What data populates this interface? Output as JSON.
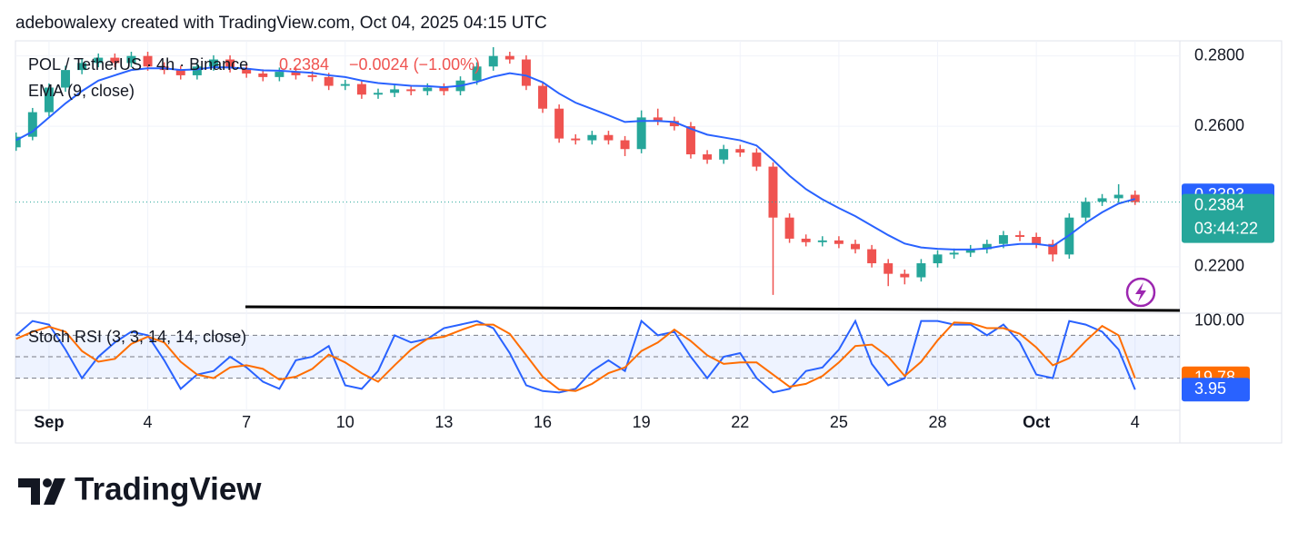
{
  "header": {
    "attribution": "adebowalexy created with TradingView.com, Oct 04, 2025 04:15 UTC",
    "logo": "TradingView"
  },
  "chart_data": [
    {
      "type": "candlestick",
      "title": "POL / TetherUS · 4h · Binance",
      "last_change": "−0.0024 (−1.00%)",
      "countdown": "03:44:22",
      "up_color": "#26a69a",
      "down_color": "#ef5350",
      "grid": true,
      "x": [
        -1,
        -0.5,
        0,
        0.5,
        1,
        1.5,
        2,
        2.5,
        3,
        3.5,
        4,
        4.5,
        5,
        5.5,
        6,
        6.5,
        7,
        7.5,
        8,
        8.5,
        9,
        9.5,
        10,
        10.5,
        11,
        11.5,
        12,
        12.5,
        13,
        13.5,
        14,
        14.5,
        15,
        15.5,
        16,
        16.5,
        17,
        17.5,
        18,
        18.5,
        19,
        19.5,
        20,
        20.5,
        21,
        21.5,
        22,
        22.5,
        23,
        23.5,
        24,
        24.5,
        25,
        25.5,
        26,
        26.5,
        27,
        27.5,
        28,
        28.5,
        29,
        29.5,
        30,
        30.5,
        31,
        31.5,
        32,
        32.5,
        33
      ],
      "ohlc": [
        [
          0.254,
          0.2582,
          0.253,
          0.257
        ],
        [
          0.257,
          0.2652,
          0.256,
          0.264
        ],
        [
          0.264,
          0.2722,
          0.2628,
          0.271
        ],
        [
          0.271,
          0.2772,
          0.2698,
          0.276
        ],
        [
          0.276,
          0.2792,
          0.2748,
          0.278
        ],
        [
          0.278,
          0.2807,
          0.2768,
          0.2795
        ],
        [
          0.2795,
          0.2807,
          0.2768,
          0.278
        ],
        [
          0.278,
          0.2812,
          0.2768,
          0.28
        ],
        [
          0.28,
          0.2812,
          0.2758,
          0.277
        ],
        [
          0.277,
          0.2782,
          0.2748,
          0.276
        ],
        [
          0.276,
          0.2772,
          0.2733,
          0.2745
        ],
        [
          0.2745,
          0.2782,
          0.2733,
          0.277
        ],
        [
          0.277,
          0.2802,
          0.2758,
          0.279
        ],
        [
          0.279,
          0.2802,
          0.2753,
          0.2765
        ],
        [
          0.2765,
          0.2777,
          0.2738,
          0.275
        ],
        [
          0.275,
          0.2762,
          0.2728,
          0.274
        ],
        [
          0.274,
          0.2767,
          0.2728,
          0.2755
        ],
        [
          0.2755,
          0.2767,
          0.2733,
          0.2745
        ],
        [
          0.2745,
          0.2757,
          0.2728,
          0.274
        ],
        [
          0.274,
          0.2752,
          0.2703,
          0.2715
        ],
        [
          0.2715,
          0.2732,
          0.2703,
          0.272
        ],
        [
          0.272,
          0.2732,
          0.2678,
          0.269
        ],
        [
          0.269,
          0.2707,
          0.2678,
          0.2695
        ],
        [
          0.2695,
          0.2717,
          0.2683,
          0.2705
        ],
        [
          0.2705,
          0.2717,
          0.2688,
          0.27
        ],
        [
          0.27,
          0.2722,
          0.2688,
          0.271
        ],
        [
          0.271,
          0.2722,
          0.2688,
          0.27
        ],
        [
          0.27,
          0.2742,
          0.2688,
          0.273
        ],
        [
          0.273,
          0.2782,
          0.2718,
          0.277
        ],
        [
          0.277,
          0.2825,
          0.2758,
          0.28
        ],
        [
          0.28,
          0.2812,
          0.2778,
          0.279
        ],
        [
          0.279,
          0.2802,
          0.2703,
          0.2715
        ],
        [
          0.2715,
          0.2727,
          0.2638,
          0.265
        ],
        [
          0.265,
          0.2662,
          0.2553,
          0.2565
        ],
        [
          0.2565,
          0.2577,
          0.2548,
          0.256
        ],
        [
          0.256,
          0.2587,
          0.2548,
          0.2575
        ],
        [
          0.2575,
          0.2587,
          0.2548,
          0.256
        ],
        [
          0.256,
          0.2572,
          0.2515,
          0.2535
        ],
        [
          0.2535,
          0.2645,
          0.2523,
          0.2625
        ],
        [
          0.2625,
          0.265,
          0.2603,
          0.2615
        ],
        [
          0.2615,
          0.2627,
          0.2588,
          0.26
        ],
        [
          0.26,
          0.2612,
          0.2508,
          0.252
        ],
        [
          0.252,
          0.2532,
          0.2493,
          0.2505
        ],
        [
          0.2505,
          0.2547,
          0.2493,
          0.2535
        ],
        [
          0.2535,
          0.2547,
          0.2513,
          0.2525
        ],
        [
          0.2525,
          0.2537,
          0.2473,
          0.2485
        ],
        [
          0.2485,
          0.2497,
          0.212,
          0.234
        ],
        [
          0.234,
          0.2352,
          0.2268,
          0.228
        ],
        [
          0.228,
          0.2292,
          0.2258,
          0.227
        ],
        [
          0.227,
          0.2287,
          0.2258,
          0.2275
        ],
        [
          0.2275,
          0.2287,
          0.2253,
          0.2265
        ],
        [
          0.2265,
          0.2277,
          0.2238,
          0.225
        ],
        [
          0.225,
          0.2262,
          0.2198,
          0.221
        ],
        [
          0.221,
          0.2222,
          0.2145,
          0.218
        ],
        [
          0.218,
          0.2192,
          0.215,
          0.217
        ],
        [
          0.217,
          0.2222,
          0.2158,
          0.221
        ],
        [
          0.221,
          0.2247,
          0.2198,
          0.2235
        ],
        [
          0.2235,
          0.2252,
          0.2223,
          0.224
        ],
        [
          0.224,
          0.2262,
          0.2228,
          0.225
        ],
        [
          0.225,
          0.2277,
          0.2238,
          0.2265
        ],
        [
          0.2265,
          0.2302,
          0.2253,
          0.229
        ],
        [
          0.229,
          0.2302,
          0.2273,
          0.2285
        ],
        [
          0.2285,
          0.2297,
          0.2253,
          0.2265
        ],
        [
          0.2265,
          0.2277,
          0.2215,
          0.2235
        ],
        [
          0.2235,
          0.2352,
          0.2223,
          0.234
        ],
        [
          0.234,
          0.2397,
          0.2328,
          0.2385
        ],
        [
          0.2385,
          0.2407,
          0.2373,
          0.2395
        ],
        [
          0.2395,
          0.2435,
          0.2383,
          0.2405
        ],
        [
          0.2405,
          0.2417,
          0.2376,
          0.2384
        ]
      ],
      "series": [
        {
          "name": "EMA (9, close)",
          "color": "#2962ff",
          "values": [
            0.256,
            0.2585,
            0.2625,
            0.2665,
            0.27,
            0.273,
            0.2745,
            0.276,
            0.2765,
            0.2765,
            0.276,
            0.2762,
            0.2768,
            0.2767,
            0.2764,
            0.2759,
            0.2758,
            0.2755,
            0.2752,
            0.2745,
            0.274,
            0.273,
            0.2723,
            0.2719,
            0.2715,
            0.2714,
            0.2711,
            0.2715,
            0.2726,
            0.2741,
            0.2751,
            0.2744,
            0.2725,
            0.2693,
            0.2667,
            0.2649,
            0.2631,
            0.2612,
            0.2615,
            0.2615,
            0.2612,
            0.2593,
            0.2576,
            0.2568,
            0.256,
            0.2545,
            0.2504,
            0.2459,
            0.2421,
            0.2392,
            0.2367,
            0.2344,
            0.2317,
            0.229,
            0.2266,
            0.2255,
            0.2251,
            0.2249,
            0.2249,
            0.2252,
            0.226,
            0.2265,
            0.2265,
            0.2259,
            0.229,
            0.2325,
            0.2355,
            0.238,
            0.2393
          ]
        }
      ],
      "xlim": [
        -1.02,
        34.36
      ],
      "xticks": [
        {
          "value": 0,
          "label": "Sep"
        },
        {
          "value": 3,
          "label": "4"
        },
        {
          "value": 6,
          "label": "7"
        },
        {
          "value": 9,
          "label": "10"
        },
        {
          "value": 12,
          "label": "13"
        },
        {
          "value": 15,
          "label": "16"
        },
        {
          "value": 18,
          "label": "19"
        },
        {
          "value": 21,
          "label": "22"
        },
        {
          "value": 24,
          "label": "25"
        },
        {
          "value": 27,
          "label": "28"
        },
        {
          "value": 30,
          "label": "Oct"
        },
        {
          "value": 33,
          "label": "4"
        }
      ],
      "ylim": [
        0.2068,
        0.2843
      ],
      "yticks": [
        {
          "value": 0.22,
          "label": "0.2200"
        },
        {
          "value": 0.26,
          "label": "0.2600"
        },
        {
          "value": 0.28,
          "label": "0.2800"
        }
      ]
    },
    {
      "type": "oscillator",
      "title": "Stoch RSI (3, 3, 14, 14, close)",
      "series": [
        {
          "color": "#2962ff",
          "values": [
            80,
            100,
            95,
            60,
            20,
            50,
            70,
            85,
            80,
            45,
            5,
            25,
            30,
            50,
            35,
            15,
            5,
            45,
            50,
            65,
            10,
            5,
            30,
            80,
            70,
            75,
            90,
            95,
            100,
            90,
            55,
            10,
            2,
            0,
            5,
            30,
            45,
            30,
            100,
            80,
            85,
            50,
            20,
            50,
            55,
            20,
            0,
            5,
            30,
            35,
            60,
            100,
            40,
            10,
            20,
            100,
            100,
            95,
            95,
            80,
            95,
            70,
            25,
            20,
            100,
            95,
            85,
            60,
            3.95
          ]
        },
        {
          "color": "#ff6d00",
          "values": [
            75,
            85,
            92,
            85,
            58,
            43,
            47,
            68,
            78,
            70,
            43,
            25,
            20,
            35,
            38,
            33,
            18,
            22,
            33,
            53,
            42,
            27,
            15,
            38,
            60,
            75,
            78,
            87,
            95,
            95,
            82,
            52,
            22,
            4,
            2,
            12,
            27,
            35,
            58,
            70,
            88,
            72,
            52,
            40,
            42,
            42,
            25,
            8,
            12,
            23,
            42,
            65,
            67,
            50,
            23,
            43,
            73,
            98,
            97,
            90,
            90,
            82,
            63,
            38,
            48,
            72,
            93,
            80,
            19.78
          ]
        }
      ],
      "ylim": [
        -25,
        111
      ],
      "yticks": [
        {
          "value": 100,
          "label": "100.00"
        }
      ],
      "levels": [
        80,
        50,
        20
      ],
      "band_color": "#2962ff"
    }
  ]
}
